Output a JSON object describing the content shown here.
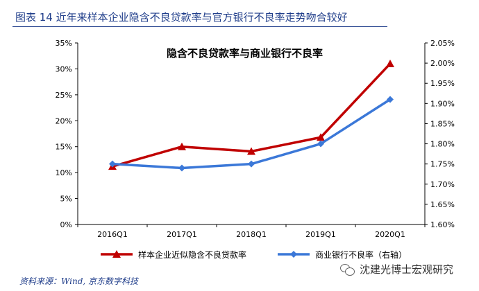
{
  "figure": {
    "title": "图表 14 近年来样本企业隐含不良贷款率与官方银行不良率走势吻合较好",
    "source": "资料来源：Wind, 京东数字科技",
    "watermark": "沈建光博士宏观研究"
  },
  "chart_data": {
    "type": "line",
    "title": "隐含不良贷款率与商业银行不良率",
    "categories": [
      "2016Q1",
      "2017Q1",
      "2018Q1",
      "2019Q1",
      "2020Q1"
    ],
    "y_left": {
      "lim": [
        0,
        35
      ],
      "ticks": [
        0,
        5,
        10,
        15,
        20,
        25,
        30,
        35
      ],
      "tick_labels": [
        "0%",
        "5%",
        "10%",
        "15%",
        "20%",
        "25%",
        "30%",
        "35%"
      ]
    },
    "y_right": {
      "lim": [
        1.6,
        2.05
      ],
      "ticks": [
        1.6,
        1.65,
        1.7,
        1.75,
        1.8,
        1.85,
        1.9,
        1.95,
        2.0,
        2.05
      ],
      "tick_labels": [
        "1.60%",
        "1.65%",
        "1.70%",
        "1.75%",
        "1.80%",
        "1.85%",
        "1.90%",
        "1.95%",
        "2.00%",
        "2.05%"
      ]
    },
    "series": [
      {
        "name": "样本企业近似隐含不良贷款率",
        "axis": "left",
        "color": "#c00000",
        "marker": "triangle",
        "values": [
          11.2,
          15.0,
          14.1,
          16.8,
          31.0
        ]
      },
      {
        "name": "商业银行不良率（右轴）",
        "axis": "right",
        "color": "#3b78d8",
        "marker": "diamond",
        "values": [
          1.75,
          1.74,
          1.75,
          1.8,
          1.91
        ]
      }
    ],
    "grid": false,
    "legend": "bottom"
  }
}
